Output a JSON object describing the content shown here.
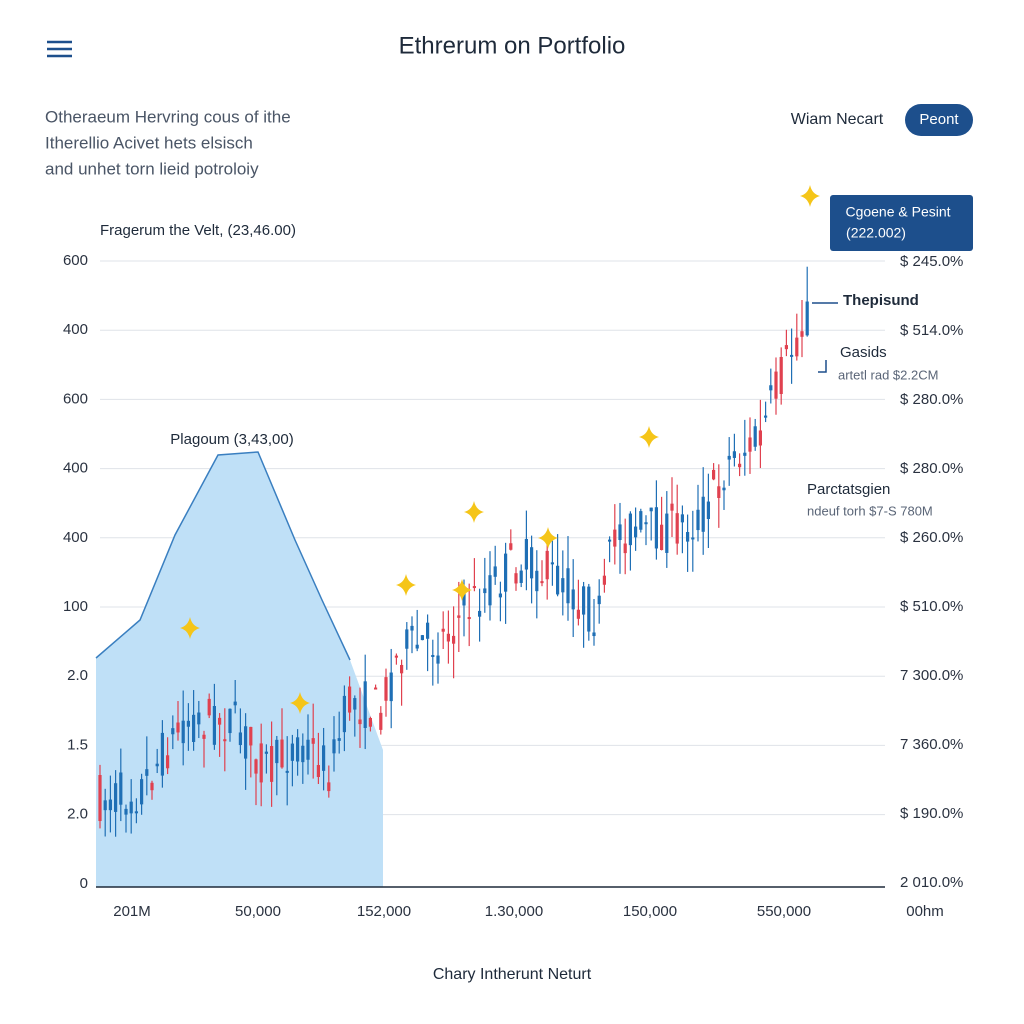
{
  "header": {
    "title": "Ethrerum on Portfolio",
    "description": [
      "Otheraeum Hervring cous of ithe",
      "Itherellio Acivet hets elsisch",
      "and unhet torn lieid potroloiy"
    ],
    "user": "Wiam Necart",
    "button": "Peont"
  },
  "chart": {
    "tooltip": {
      "title": "Cgoene & Pesint",
      "value": "(222.002)"
    },
    "top_label": "Fragerum the Velt, (23,46.00)",
    "area_label": "Plagoum (3,43,00)",
    "y_labels": [
      "600",
      "400",
      "600",
      "400",
      "400",
      "100",
      "2.0",
      "1.5",
      "2.0",
      "0"
    ],
    "right_labels": [
      "$ 245.0%",
      "$ 514.0%",
      "$ 280.0%",
      "$ 280.0%",
      "$ 260.0%",
      "$ 510.0%",
      "7 300.0%",
      "7 360.0%",
      "$ 190.0%",
      "2 010.0%"
    ],
    "x_labels": [
      "201M",
      "50,000",
      "152,000",
      "1.30,000",
      "150,000",
      "550,000",
      "00hm"
    ],
    "annotations": [
      {
        "title": "Thepisund"
      },
      {
        "title": "Gasids",
        "note": "artetl rad $2.2CM"
      },
      {
        "title": "Parctatsgien",
        "note": "ndeuf torh $7-S 780M"
      }
    ]
  },
  "footer": "Chary Intherunt Neturt"
}
